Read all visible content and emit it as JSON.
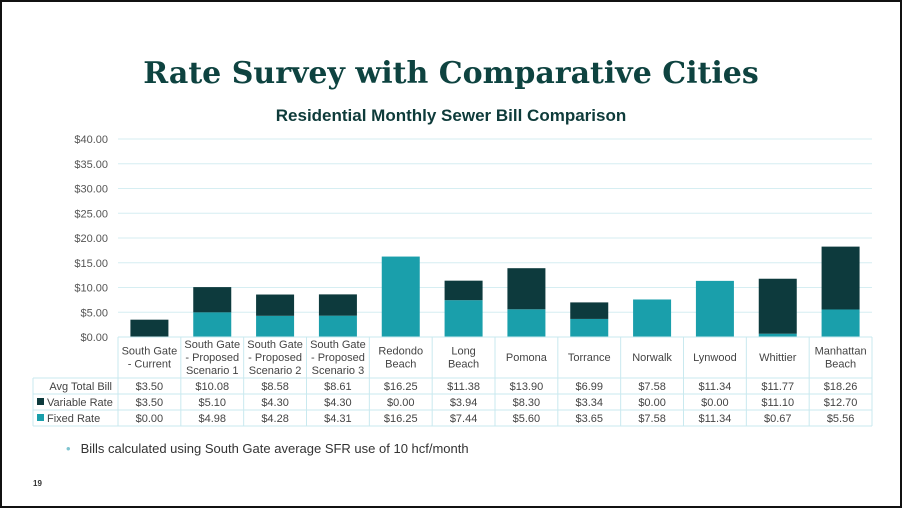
{
  "slide": {
    "title": "Rate Survey with Comparative Cities",
    "page_number": "19",
    "note": "Bills calculated using South Gate average SFR use of 10 hcf/month",
    "bullet": "•"
  },
  "chart_data": {
    "type": "bar",
    "stacked": true,
    "title": "Residential Monthly Sewer Bill Comparison",
    "categories": [
      [
        "South Gate",
        "- Current"
      ],
      [
        "South Gate",
        "- Proposed",
        "Scenario 1"
      ],
      [
        "South Gate",
        "- Proposed",
        "Scenario 2"
      ],
      [
        "South Gate",
        "- Proposed",
        "Scenario 3"
      ],
      [
        "Redondo",
        "Beach"
      ],
      [
        "Long",
        "Beach"
      ],
      [
        "Pomona"
      ],
      [
        "Torrance"
      ],
      [
        "Norwalk"
      ],
      [
        "Lynwood"
      ],
      [
        "Whittier"
      ],
      [
        "Manhattan",
        "Beach"
      ]
    ],
    "yticks": [
      "$0.00",
      "$5.00",
      "$10.00",
      "$15.00",
      "$20.00",
      "$25.00",
      "$30.00",
      "$35.00",
      "$40.00"
    ],
    "ylim": [
      0,
      40
    ],
    "grid": true,
    "series": [
      {
        "name": "Fixed Rate",
        "color": "#1a9fab",
        "values": [
          0.0,
          4.98,
          4.28,
          4.31,
          16.25,
          7.44,
          5.6,
          3.65,
          7.58,
          11.34,
          0.67,
          5.56
        ],
        "labels": [
          "$0.00",
          "$4.98",
          "$4.28",
          "$4.31",
          "$16.25",
          "$7.44",
          "$5.60",
          "$3.65",
          "$7.58",
          "$11.34",
          "$0.67",
          "$5.56"
        ]
      },
      {
        "name": "Variable Rate",
        "color": "#0d3a3d",
        "values": [
          3.5,
          5.1,
          4.3,
          4.3,
          0.0,
          3.94,
          8.3,
          3.34,
          0.0,
          0.0,
          11.1,
          12.7
        ],
        "labels": [
          "$3.50",
          "$5.10",
          "$4.30",
          "$4.30",
          "$0.00",
          "$3.94",
          "$8.30",
          "$3.34",
          "$0.00",
          "$0.00",
          "$11.10",
          "$12.70"
        ]
      }
    ],
    "total_row": {
      "name": "Avg Total Bill",
      "labels": [
        "$3.50",
        "$10.08",
        "$8.58",
        "$8.61",
        "$16.25",
        "$11.38",
        "$13.90",
        "$6.99",
        "$7.58",
        "$11.34",
        "$11.77",
        "$18.26"
      ]
    },
    "table_row_order": [
      "total",
      "Variable Rate",
      "Fixed Rate"
    ]
  }
}
